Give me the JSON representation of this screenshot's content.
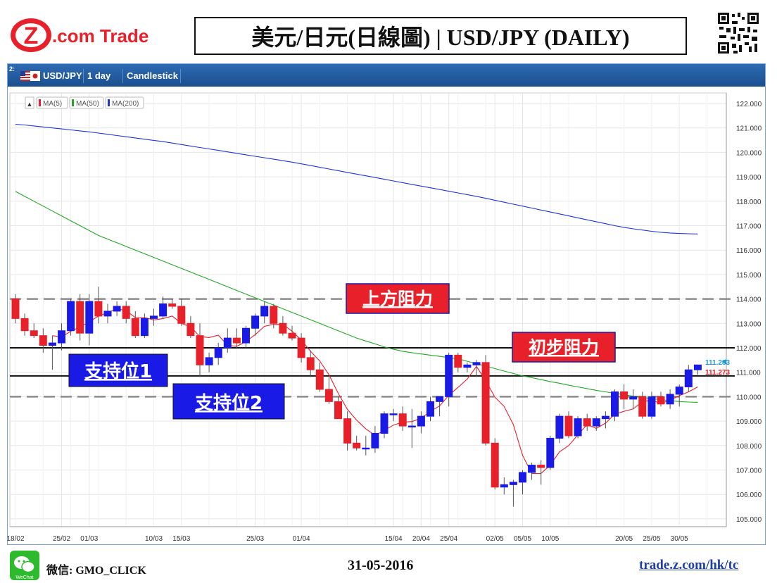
{
  "header": {
    "logo_z": "Z",
    "logo_text": ".com Trade",
    "title": "美元/日元(日線圖) | USD/JPY (DAILY)"
  },
  "toolbar": {
    "corner_label": "2:",
    "symbol": "USD/JPY",
    "interval": "1 day",
    "chart_style": "Candlestick"
  },
  "legend": {
    "collapse_symbol": "▲",
    "items": [
      {
        "label": "MA(5)",
        "color": "#e8202a"
      },
      {
        "label": "MA(50)",
        "color": "#22a822"
      },
      {
        "label": "MA(200)",
        "color": "#2233dd"
      }
    ]
  },
  "annotations": {
    "upper_resistance": "上方阻力",
    "initial_resistance": "初步阻力",
    "support1": "支持位1",
    "support2": "支持位2"
  },
  "colors": {
    "up_candle": "#1a1ae6",
    "down_candle": "#e8202a",
    "label_red": "#e8202a",
    "label_blue": "#1a1ae6",
    "toolbar": "#1f5597"
  },
  "chart_data": {
    "type": "candlestick",
    "ylim": [
      104.5,
      122.4
    ],
    "y_ticks": [
      "122.000",
      "121.000",
      "120.000",
      "119.000",
      "118.000",
      "117.000",
      "116.000",
      "115.000",
      "114.000",
      "113.000",
      "112.000",
      "111.000",
      "110.000",
      "109.000",
      "108.000",
      "107.000",
      "106.000",
      "105.000"
    ],
    "x_labels": [
      {
        "label": "18/02",
        "index": 0
      },
      {
        "label": "25/02",
        "index": 5
      },
      {
        "label": "01/03",
        "index": 8
      },
      {
        "label": "10/03",
        "index": 15
      },
      {
        "label": "15/03",
        "index": 18
      },
      {
        "label": "25/03",
        "index": 26
      },
      {
        "label": "01/04",
        "index": 31
      },
      {
        "label": "15/04",
        "index": 41
      },
      {
        "label": "20/04",
        "index": 44
      },
      {
        "label": "25/04",
        "index": 47
      },
      {
        "label": "02/05",
        "index": 52
      },
      {
        "label": "05/05",
        "index": 55
      },
      {
        "label": "10/05",
        "index": 58
      },
      {
        "label": "20/05",
        "index": 66
      },
      {
        "label": "25/05",
        "index": 69
      },
      {
        "label": "30/05",
        "index": 72
      }
    ],
    "ohlc": [
      [
        114.0,
        114.2,
        113.0,
        113.2
      ],
      [
        113.2,
        113.4,
        112.5,
        112.7
      ],
      [
        112.7,
        113.0,
        112.4,
        112.5
      ],
      [
        112.5,
        112.8,
        111.8,
        112.1
      ],
      [
        112.1,
        112.5,
        111.1,
        112.2
      ],
      [
        112.2,
        113.0,
        111.9,
        112.7
      ],
      [
        112.7,
        114.0,
        112.5,
        113.9
      ],
      [
        113.9,
        114.2,
        112.3,
        112.6
      ],
      [
        112.6,
        114.2,
        112.1,
        113.9
      ],
      [
        113.9,
        114.5,
        113.0,
        113.3
      ],
      [
        113.3,
        113.8,
        113.0,
        113.5
      ],
      [
        113.5,
        113.9,
        113.3,
        113.7
      ],
      [
        113.7,
        113.9,
        113.0,
        113.2
      ],
      [
        113.2,
        113.5,
        112.4,
        112.5
      ],
      [
        112.5,
        113.4,
        112.4,
        113.2
      ],
      [
        113.2,
        113.6,
        112.9,
        113.3
      ],
      [
        113.3,
        114.1,
        113.2,
        113.8
      ],
      [
        113.8,
        114.0,
        113.6,
        113.7
      ],
      [
        113.7,
        114.0,
        112.9,
        113.0
      ],
      [
        113.0,
        113.3,
        112.4,
        112.5
      ],
      [
        112.5,
        113.0,
        110.8,
        111.3
      ],
      [
        111.3,
        111.8,
        111.0,
        111.6
      ],
      [
        111.6,
        112.2,
        111.3,
        112.0
      ],
      [
        112.0,
        112.8,
        111.8,
        112.4
      ],
      [
        112.4,
        112.8,
        112.0,
        112.2
      ],
      [
        112.2,
        112.9,
        112.0,
        112.8
      ],
      [
        112.8,
        113.4,
        112.5,
        113.3
      ],
      [
        113.3,
        113.9,
        113.0,
        113.7
      ],
      [
        113.7,
        113.8,
        112.8,
        113.0
      ],
      [
        113.0,
        113.3,
        112.5,
        112.6
      ],
      [
        112.6,
        112.9,
        112.3,
        112.4
      ],
      [
        112.4,
        112.6,
        111.4,
        111.6
      ],
      [
        111.6,
        111.9,
        110.8,
        111.1
      ],
      [
        111.1,
        111.4,
        110.2,
        110.3
      ],
      [
        110.3,
        110.8,
        109.7,
        109.8
      ],
      [
        109.8,
        110.0,
        109.2,
        109.1
      ],
      [
        109.1,
        109.4,
        107.8,
        108.1
      ],
      [
        108.1,
        108.4,
        107.8,
        107.9
      ],
      [
        107.9,
        108.4,
        107.6,
        107.9
      ],
      [
        107.9,
        108.8,
        107.7,
        108.5
      ],
      [
        108.5,
        109.4,
        108.3,
        109.3
      ],
      [
        109.3,
        109.5,
        109.0,
        109.3
      ],
      [
        109.3,
        109.6,
        108.6,
        108.8
      ],
      [
        108.8,
        109.5,
        107.9,
        108.8
      ],
      [
        108.8,
        109.4,
        108.5,
        109.2
      ],
      [
        109.2,
        110.0,
        109.0,
        109.8
      ],
      [
        109.8,
        110.0,
        109.2,
        110.0
      ],
      [
        110.0,
        111.8,
        109.6,
        111.7
      ],
      [
        111.7,
        111.8,
        111.0,
        111.2
      ],
      [
        111.2,
        111.4,
        111.0,
        111.3
      ],
      [
        111.3,
        111.5,
        110.8,
        111.4
      ],
      [
        111.4,
        111.7,
        108.0,
        108.1
      ],
      [
        108.1,
        108.3,
        106.2,
        106.3
      ],
      [
        106.3,
        106.7,
        106.0,
        106.4
      ],
      [
        106.4,
        106.6,
        105.5,
        106.5
      ],
      [
        106.5,
        107.0,
        106.0,
        106.9
      ],
      [
        106.9,
        107.3,
        106.6,
        107.2
      ],
      [
        107.2,
        107.4,
        106.4,
        107.1
      ],
      [
        107.1,
        108.4,
        107.0,
        108.3
      ],
      [
        108.3,
        109.3,
        108.1,
        109.2
      ],
      [
        109.2,
        109.4,
        108.3,
        108.4
      ],
      [
        108.4,
        109.2,
        108.3,
        109.1
      ],
      [
        109.1,
        109.3,
        108.6,
        108.8
      ],
      [
        108.8,
        109.2,
        108.6,
        109.1
      ],
      [
        109.1,
        109.4,
        108.7,
        109.2
      ],
      [
        109.2,
        110.3,
        109.0,
        110.2
      ],
      [
        110.2,
        110.5,
        109.5,
        109.9
      ],
      [
        109.9,
        110.3,
        109.5,
        110.0
      ],
      [
        110.0,
        110.2,
        109.1,
        109.2
      ],
      [
        109.2,
        110.2,
        109.1,
        110.0
      ],
      [
        110.0,
        110.2,
        109.6,
        109.7
      ],
      [
        109.7,
        110.3,
        109.5,
        110.1
      ],
      [
        110.1,
        110.5,
        109.6,
        110.4
      ],
      [
        110.4,
        111.3,
        110.2,
        111.1
      ],
      [
        111.1,
        111.3,
        110.9,
        111.3
      ]
    ],
    "ma_series": [
      {
        "name": "MA(5)",
        "color": "#e8202a",
        "values": [
          null,
          null,
          null,
          null,
          112.5,
          112.44,
          112.68,
          112.86,
          113.06,
          113.3,
          113.44,
          113.6,
          113.52,
          113.24,
          113.24,
          113.14,
          113.2,
          113.3,
          113.0,
          112.86,
          112.46,
          112.42,
          112.52,
          112.1,
          112.06,
          112.26,
          112.54,
          112.88,
          112.96,
          112.96,
          112.68,
          112.32,
          111.86,
          111.46,
          110.9,
          110.14,
          109.48,
          109.04,
          108.68,
          108.42,
          108.62,
          108.84,
          108.96,
          108.98,
          109.12,
          109.4,
          109.62,
          110.06,
          110.38,
          110.72,
          111.24,
          110.66,
          109.98,
          109.6,
          108.86,
          107.6,
          106.86,
          106.86,
          107.2,
          107.74,
          108.0,
          108.44,
          108.86,
          108.7,
          108.92,
          109.28,
          109.4,
          109.5,
          109.8,
          109.86,
          109.72,
          109.86,
          110.04,
          110.2,
          110.4
        ]
      },
      {
        "name": "MA(50)",
        "color": "#22a822",
        "values": [
          118.4,
          118.2,
          118.0,
          117.8,
          117.6,
          117.4,
          117.2,
          117.0,
          116.8,
          116.6,
          116.45,
          116.3,
          116.15,
          116.0,
          115.85,
          115.7,
          115.55,
          115.4,
          115.25,
          115.1,
          114.95,
          114.8,
          114.65,
          114.5,
          114.35,
          114.2,
          114.05,
          113.9,
          113.75,
          113.6,
          113.45,
          113.3,
          113.15,
          113.0,
          112.85,
          112.7,
          112.55,
          112.4,
          112.28,
          112.16,
          112.04,
          111.94,
          111.86,
          111.8,
          111.75,
          111.7,
          111.65,
          111.6,
          111.55,
          111.45,
          111.35,
          111.25,
          111.15,
          111.05,
          110.95,
          110.85,
          110.78,
          110.7,
          110.62,
          110.55,
          110.47,
          110.4,
          110.33,
          110.26,
          110.2,
          110.14,
          110.08,
          110.02,
          109.97,
          109.92,
          109.88,
          109.84,
          109.8,
          109.78,
          109.77
        ]
      },
      {
        "name": "MA(200)",
        "color": "#2233dd",
        "values": [
          121.15,
          121.12,
          121.08,
          121.04,
          121.0,
          120.96,
          120.92,
          120.88,
          120.84,
          120.79,
          120.74,
          120.69,
          120.64,
          120.59,
          120.54,
          120.49,
          120.44,
          120.38,
          120.32,
          120.26,
          120.2,
          120.14,
          120.08,
          120.02,
          119.96,
          119.9,
          119.84,
          119.78,
          119.72,
          119.66,
          119.6,
          119.53,
          119.46,
          119.39,
          119.32,
          119.25,
          119.18,
          119.11,
          119.04,
          118.97,
          118.9,
          118.83,
          118.76,
          118.69,
          118.62,
          118.55,
          118.48,
          118.41,
          118.34,
          118.27,
          118.2,
          118.12,
          118.04,
          117.96,
          117.88,
          117.8,
          117.72,
          117.64,
          117.56,
          117.48,
          117.4,
          117.32,
          117.24,
          117.16,
          117.08,
          117.0,
          116.93,
          116.87,
          116.82,
          116.77,
          116.73,
          116.7,
          116.68,
          116.67,
          116.66
        ]
      }
    ],
    "price_tags": [
      {
        "value": 111.283,
        "label": "111.283",
        "color": "#1a9bd6"
      },
      {
        "value": 111.273,
        "label": "111.273",
        "color": "#e8202a"
      }
    ],
    "levels": [
      {
        "name": "upper_resistance",
        "value": 114.0,
        "style": "dashed"
      },
      {
        "name": "initial_resistance",
        "value": 112.0,
        "style": "solid"
      },
      {
        "name": "support1",
        "value": 110.85,
        "style": "solid"
      },
      {
        "name": "support2",
        "value": 110.0,
        "style": "dashed"
      }
    ]
  },
  "footer": {
    "wechat_icon_text": "WeChat",
    "wechat_label": "微信: GMO_CLICK",
    "date": "31-05-2016",
    "website": "trade.z.com/hk/tc"
  }
}
